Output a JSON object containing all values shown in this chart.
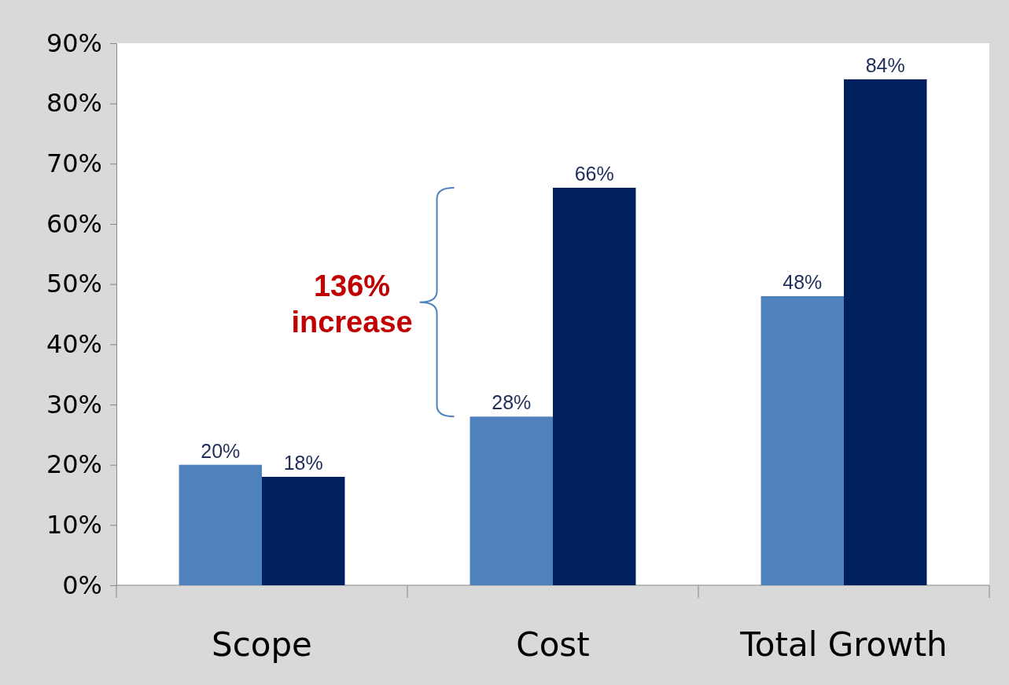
{
  "chart_data": {
    "type": "bar",
    "categories": [
      "Scope",
      "Cost",
      "Total Growth"
    ],
    "series": [
      {
        "color": "#4f81bd",
        "values": [
          20,
          28,
          48
        ],
        "value_labels": [
          "20%",
          "28%",
          "48%"
        ]
      },
      {
        "color": "#002060",
        "values": [
          18,
          66,
          84
        ],
        "value_labels": [
          "18%",
          "66%",
          "84%"
        ]
      }
    ],
    "ylim": [
      0,
      90
    ],
    "yticks": [
      {
        "value": 0,
        "label": "0%"
      },
      {
        "value": 10,
        "label": "10%"
      },
      {
        "value": 20,
        "label": "20%"
      },
      {
        "value": 30,
        "label": "30%"
      },
      {
        "value": 40,
        "label": "40%"
      },
      {
        "value": 50,
        "label": "50%"
      },
      {
        "value": 60,
        "label": "60%"
      },
      {
        "value": 70,
        "label": "70%"
      },
      {
        "value": 80,
        "label": "80%"
      },
      {
        "value": 90,
        "label": "90%"
      }
    ],
    "annotations": [
      "136% increase"
    ]
  }
}
